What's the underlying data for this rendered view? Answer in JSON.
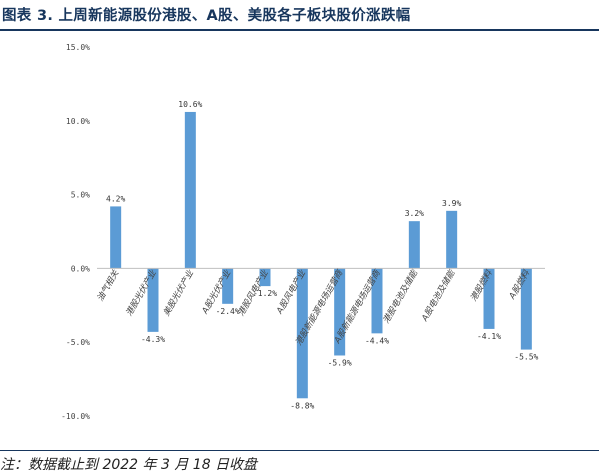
{
  "title": "图表 3. 上周新能源股份港股、A股、美股各子板块股价涨跌幅",
  "note": "注：数据截止到 2022 年 3 月 18 日收盘",
  "colors": {
    "bar": "#5b9bd5",
    "title": "#17365d"
  },
  "chart_data": {
    "type": "bar",
    "categories": [
      "油气相关",
      "港股光伏产业",
      "美股光伏产业",
      "A股光伏产业",
      "港股风电产业",
      "A股风电产业",
      "港股新能源电场运营商",
      "A股新能源电场运营商",
      "港股电池及储能",
      "A股电池及储能",
      "港股燃料",
      "A股燃料"
    ],
    "values": [
      4.2,
      -4.3,
      10.6,
      -2.4,
      -1.2,
      -8.8,
      -5.9,
      -4.4,
      3.2,
      3.9,
      -4.1,
      -5.5
    ],
    "value_labels": [
      "4.2%",
      "-4.3%",
      "10.6%",
      "-2.4%",
      "-1.2%",
      "-8.8%",
      "-5.9%",
      "-4.4%",
      "3.2%",
      "3.9%",
      "-4.1%",
      "-5.5%"
    ],
    "ylim": [
      -10,
      15
    ],
    "yticks": [
      15,
      10,
      5,
      0,
      -5,
      -10
    ],
    "ytick_labels": [
      "15.0%",
      "10.0%",
      "5.0%",
      "0.0%",
      "-5.0%",
      "-10.0%"
    ],
    "grid": false,
    "legend": "none"
  }
}
